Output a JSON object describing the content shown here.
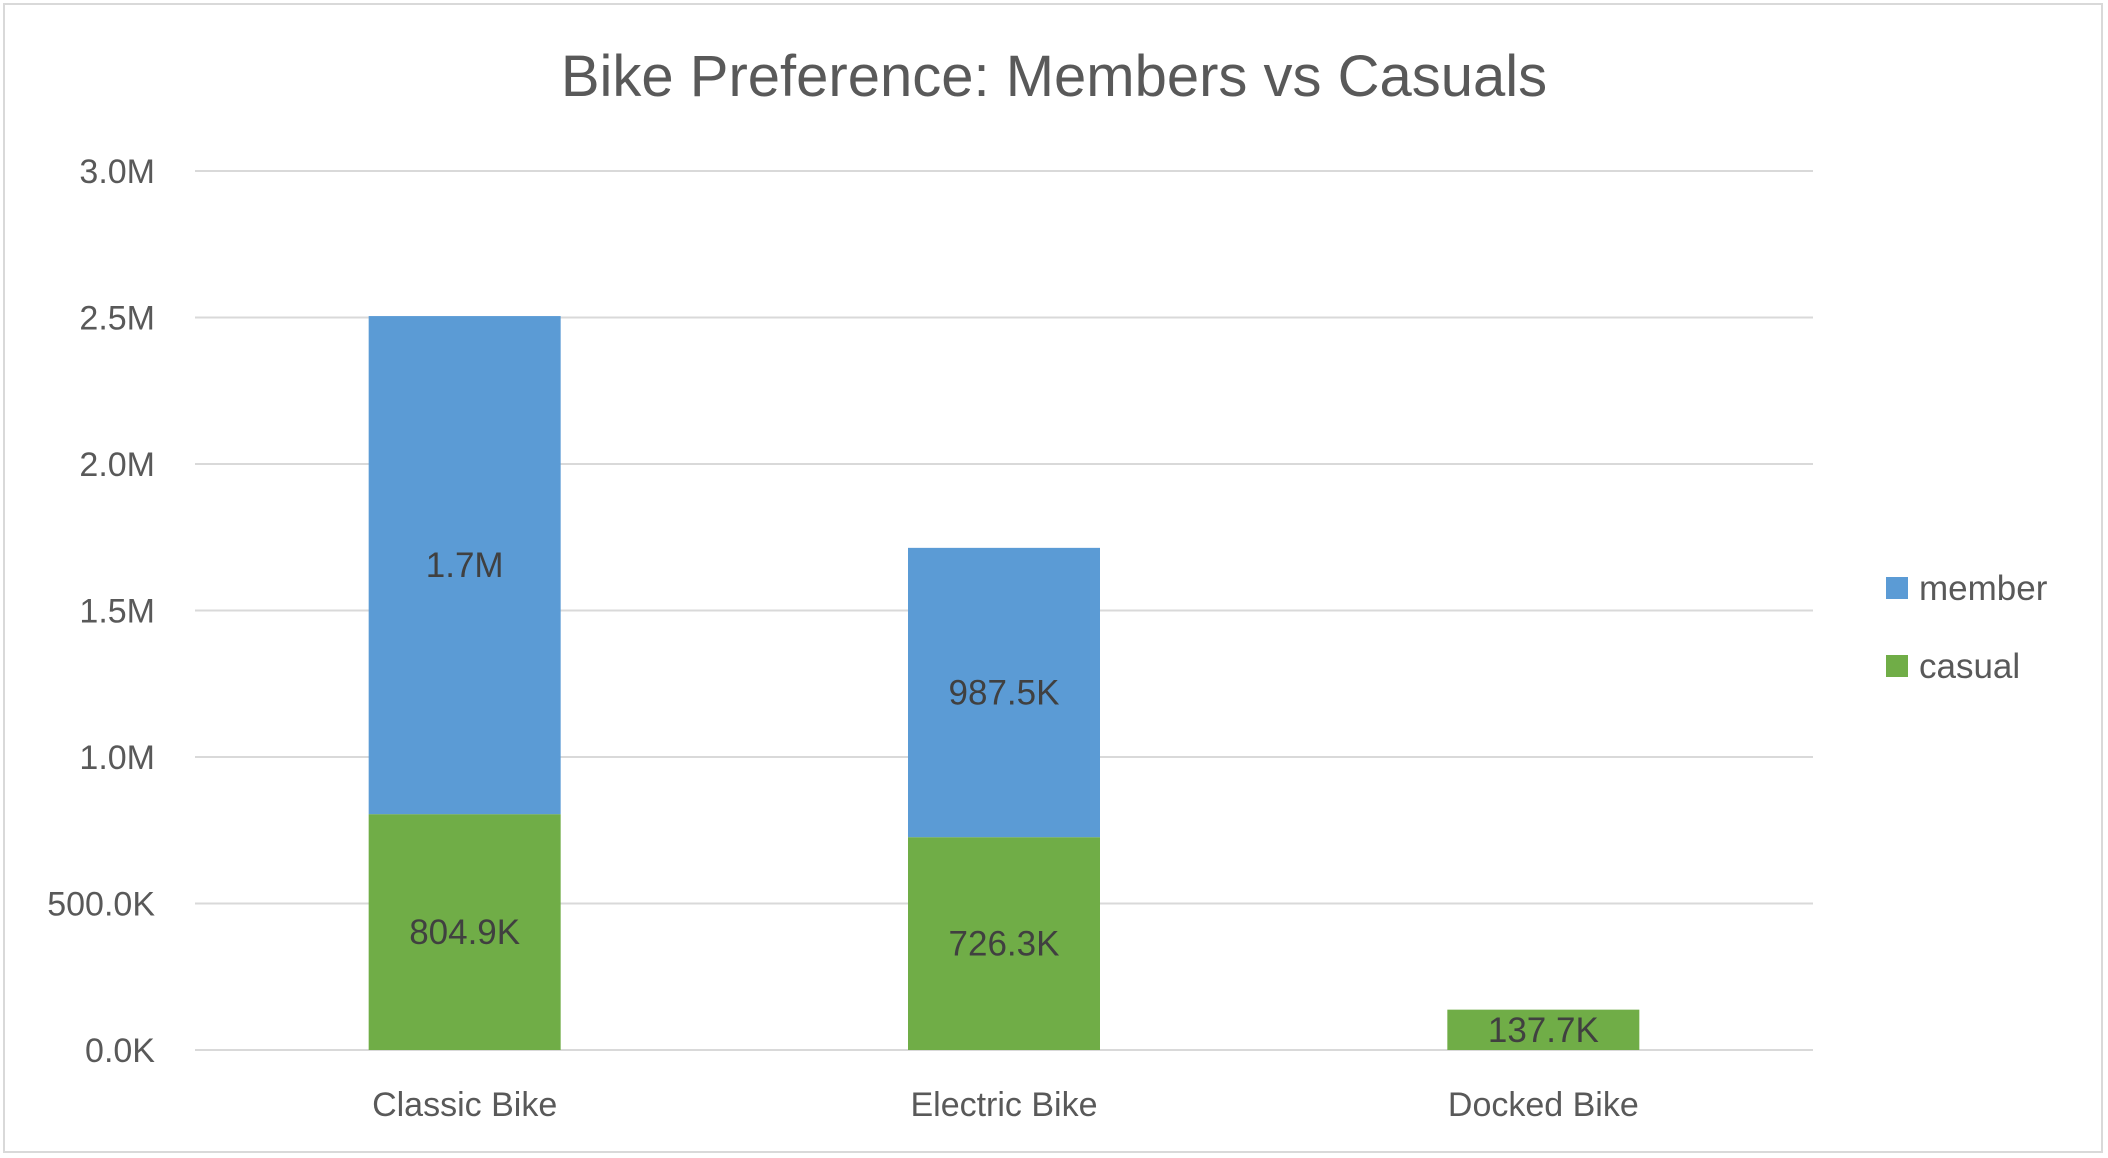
{
  "chart_data": {
    "type": "bar",
    "stacked": true,
    "title": "Bike Preference: Members vs Casuals",
    "xlabel": "",
    "ylabel": "",
    "categories": [
      "Classic Bike",
      "Electric Bike",
      "Docked Bike"
    ],
    "series": [
      {
        "name": "casual",
        "color": "#70ad47",
        "values": [
          804900,
          726300,
          137700
        ],
        "labels": [
          "804.9K",
          "726.3K",
          "137.7K"
        ]
      },
      {
        "name": "member",
        "color": "#5b9bd5",
        "values": [
          1700000,
          987500,
          0
        ],
        "labels": [
          "1.7M",
          "987.5K",
          ""
        ]
      }
    ],
    "ylim": [
      0,
      3000000
    ],
    "yticks": [
      0,
      500000,
      1000000,
      1500000,
      2000000,
      2500000,
      3000000
    ],
    "ytick_labels": [
      "0.0K",
      "500.0K",
      "1.0M",
      "1.5M",
      "2.0M",
      "2.5M",
      "3.0M"
    ],
    "grid": true,
    "legend_position": "right",
    "legend": [
      {
        "name": "member",
        "color": "#5b9bd5"
      },
      {
        "name": "casual",
        "color": "#70ad47"
      }
    ]
  }
}
